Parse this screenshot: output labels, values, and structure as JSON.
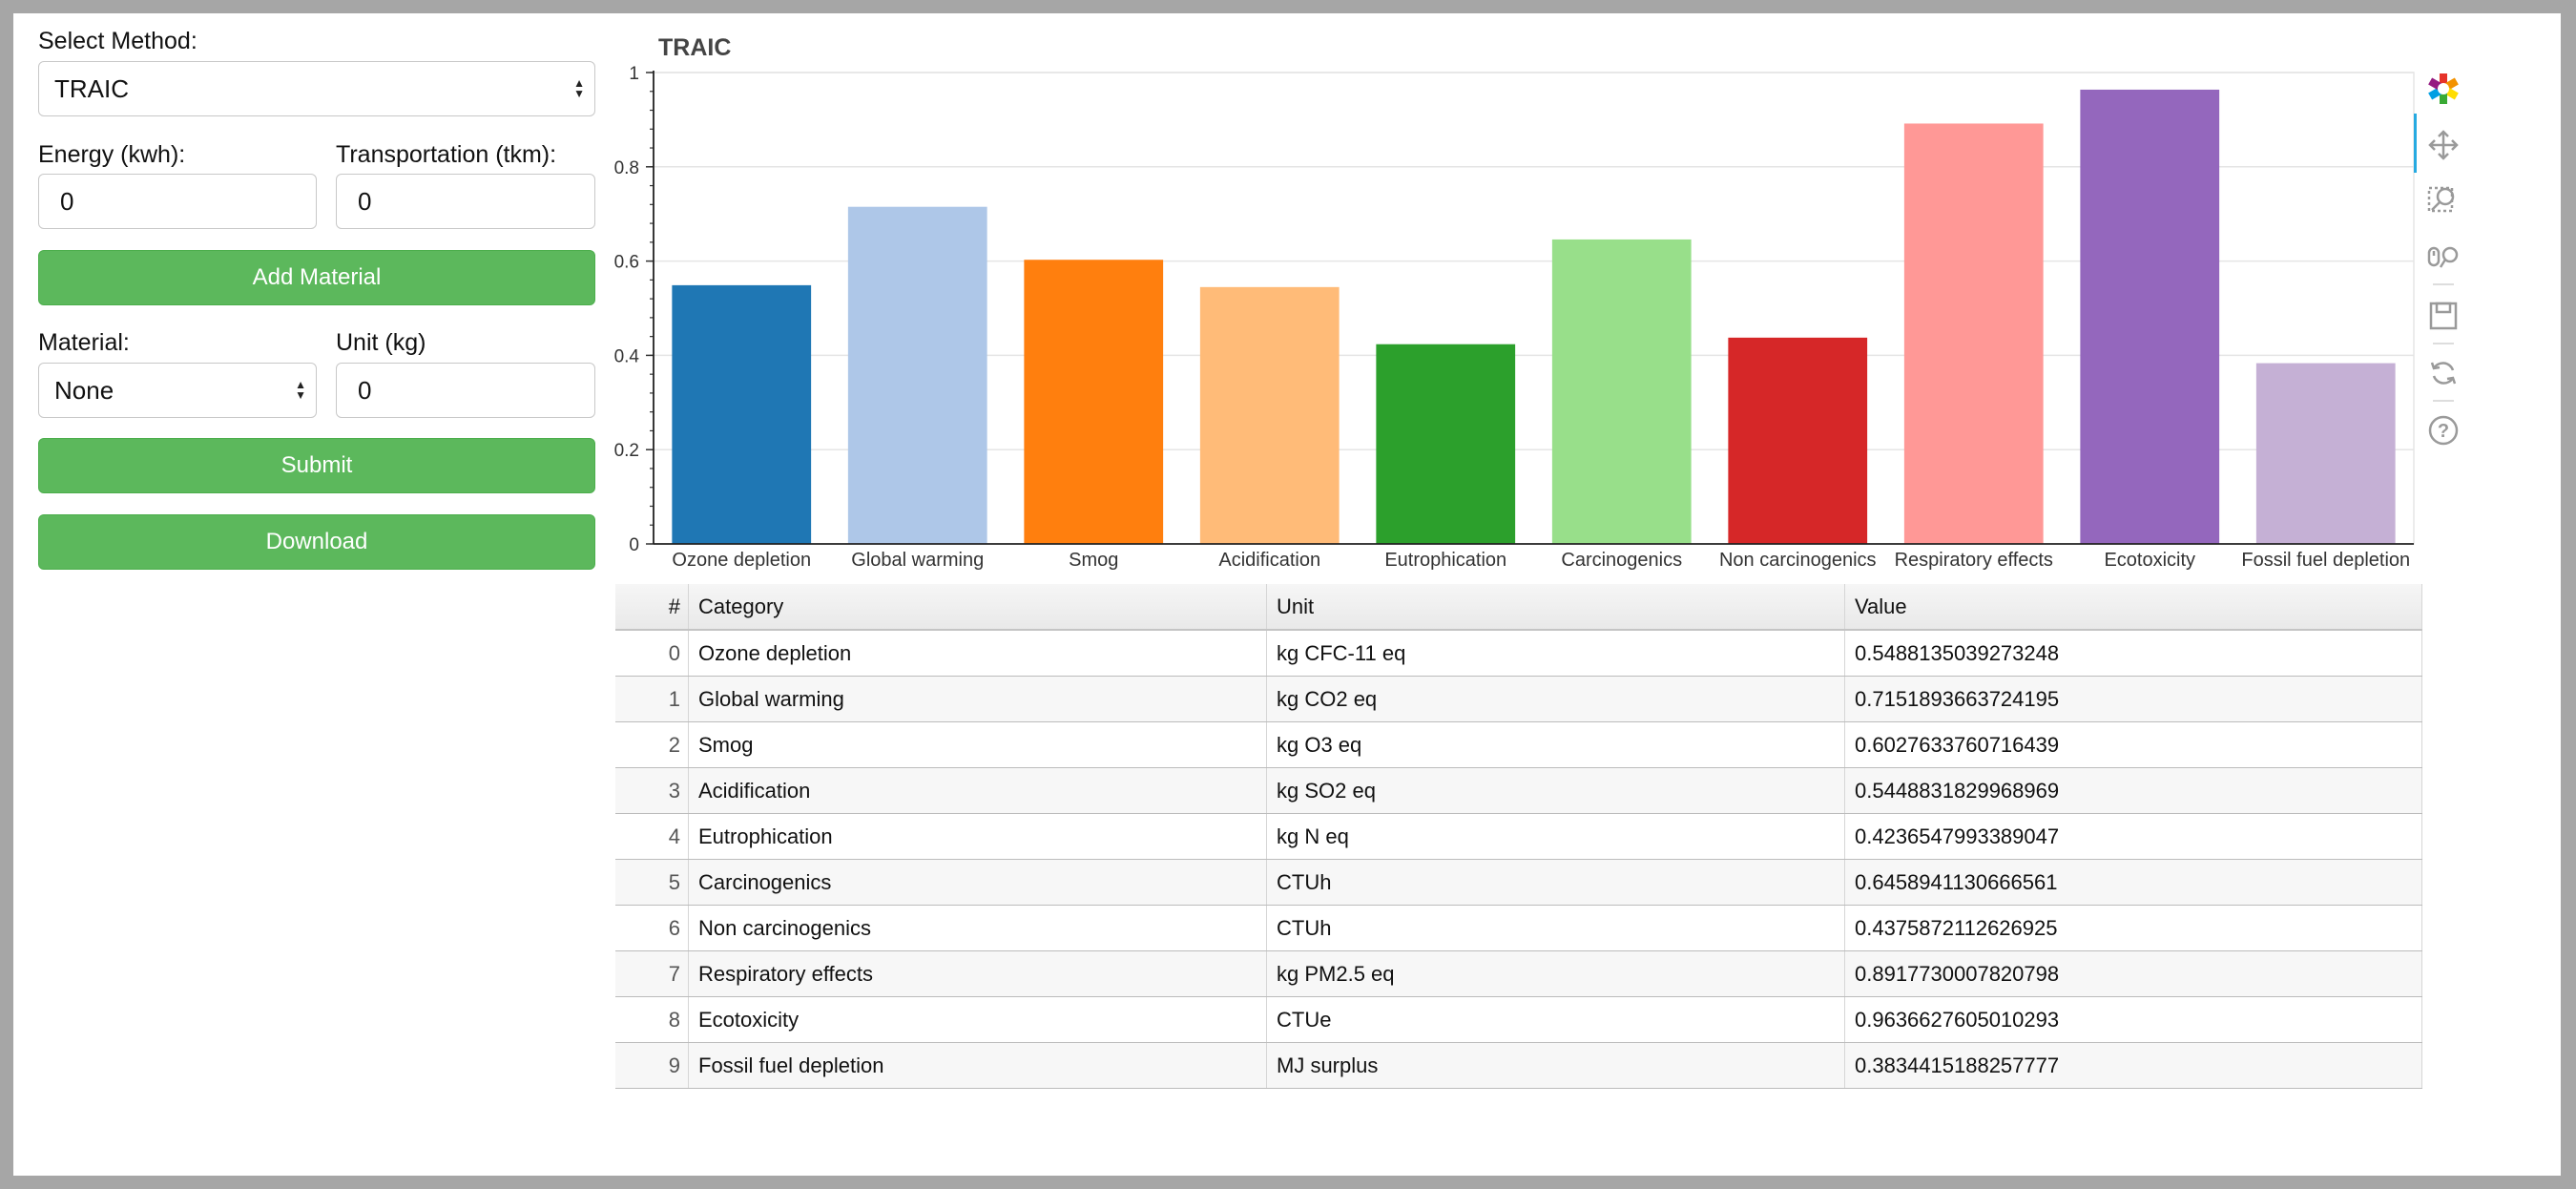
{
  "controls": {
    "method_label": "Select Method:",
    "method_value": "TRAIC",
    "energy_label": "Energy (kwh):",
    "energy_value": "0",
    "transport_label": "Transportation (tkm):",
    "transport_value": "0",
    "add_material_label": "Add Material",
    "material_label": "Material:",
    "material_value": "None",
    "unit_label": "Unit (kg)",
    "unit_value": "0",
    "submit_label": "Submit",
    "download_label": "Download"
  },
  "chart_data": {
    "type": "bar",
    "title": "TRAIC",
    "xlabel": "",
    "ylabel": "",
    "ylim": [
      0,
      1
    ],
    "yticks": [
      "0",
      "0.2",
      "0.4",
      "0.6",
      "0.8",
      "1"
    ],
    "grid": true,
    "categories": [
      "Ozone depletion",
      "Global warming",
      "Smog",
      "Acidification",
      "Eutrophication",
      "Carcinogenics",
      "Non carcinogenics",
      "Respiratory effects",
      "Ecotoxicity",
      "Fossil fuel depletion"
    ],
    "values": [
      0.5488135039273248,
      0.7151893663724195,
      0.6027633760716439,
      0.5448831829968969,
      0.4236547993389047,
      0.6458941130666561,
      0.4375872112626925,
      0.8917730007820798,
      0.9636627605010293,
      0.3834415188257777
    ],
    "colors": [
      "#1f77b4",
      "#aec7e8",
      "#ff7f0e",
      "#ffbb78",
      "#2ca02c",
      "#98df8a",
      "#d62728",
      "#ff9896",
      "#9467bd",
      "#c5b0d5"
    ]
  },
  "table": {
    "headers": [
      "#",
      "Category",
      "Unit",
      "Value"
    ],
    "rows": [
      {
        "idx": "0",
        "category": "Ozone depletion",
        "unit": "kg CFC-11 eq",
        "value": "0.5488135039273248"
      },
      {
        "idx": "1",
        "category": "Global warming",
        "unit": "kg CO2 eq",
        "value": "0.7151893663724195"
      },
      {
        "idx": "2",
        "category": "Smog",
        "unit": "kg O3 eq",
        "value": "0.6027633760716439"
      },
      {
        "idx": "3",
        "category": "Acidification",
        "unit": "kg SO2 eq",
        "value": "0.5448831829968969"
      },
      {
        "idx": "4",
        "category": "Eutrophication",
        "unit": "kg N eq",
        "value": "0.4236547993389047"
      },
      {
        "idx": "5",
        "category": "Carcinogenics",
        "unit": "CTUh",
        "value": "0.6458941130666561"
      },
      {
        "idx": "6",
        "category": "Non carcinogenics",
        "unit": "CTUh",
        "value": "0.4375872112626925"
      },
      {
        "idx": "7",
        "category": "Respiratory effects",
        "unit": "kg PM2.5 eq",
        "value": "0.8917730007820798"
      },
      {
        "idx": "8",
        "category": "Ecotoxicity",
        "unit": "CTUe",
        "value": "0.9636627605010293"
      },
      {
        "idx": "9",
        "category": "Fossil fuel depletion",
        "unit": "MJ surplus",
        "value": "0.3834415188257777"
      }
    ]
  },
  "toolbar": {
    "icons": [
      "bokeh-logo-icon",
      "pan-icon",
      "box-zoom-icon",
      "wheel-zoom-icon",
      "save-icon",
      "reset-icon",
      "help-icon"
    ]
  }
}
